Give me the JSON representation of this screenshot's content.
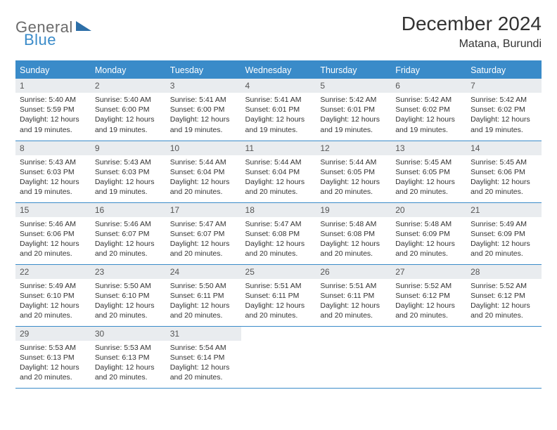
{
  "logo": {
    "part1": "General",
    "part2": "Blue"
  },
  "title": "December 2024",
  "location": "Matana, Burundi",
  "colors": {
    "header_bg": "#3a8bc9",
    "header_text": "#ffffff",
    "daynum_bg": "#e9ecef",
    "border": "#3a8bc9",
    "logo_gray": "#6b6b6b",
    "logo_blue": "#3a8bc9"
  },
  "weekdays": [
    "Sunday",
    "Monday",
    "Tuesday",
    "Wednesday",
    "Thursday",
    "Friday",
    "Saturday"
  ],
  "weeks": [
    [
      {
        "n": "1",
        "sr": "5:40 AM",
        "ss": "5:59 PM",
        "dl": "12 hours and 19 minutes."
      },
      {
        "n": "2",
        "sr": "5:40 AM",
        "ss": "6:00 PM",
        "dl": "12 hours and 19 minutes."
      },
      {
        "n": "3",
        "sr": "5:41 AM",
        "ss": "6:00 PM",
        "dl": "12 hours and 19 minutes."
      },
      {
        "n": "4",
        "sr": "5:41 AM",
        "ss": "6:01 PM",
        "dl": "12 hours and 19 minutes."
      },
      {
        "n": "5",
        "sr": "5:42 AM",
        "ss": "6:01 PM",
        "dl": "12 hours and 19 minutes."
      },
      {
        "n": "6",
        "sr": "5:42 AM",
        "ss": "6:02 PM",
        "dl": "12 hours and 19 minutes."
      },
      {
        "n": "7",
        "sr": "5:42 AM",
        "ss": "6:02 PM",
        "dl": "12 hours and 19 minutes."
      }
    ],
    [
      {
        "n": "8",
        "sr": "5:43 AM",
        "ss": "6:03 PM",
        "dl": "12 hours and 19 minutes."
      },
      {
        "n": "9",
        "sr": "5:43 AM",
        "ss": "6:03 PM",
        "dl": "12 hours and 19 minutes."
      },
      {
        "n": "10",
        "sr": "5:44 AM",
        "ss": "6:04 PM",
        "dl": "12 hours and 20 minutes."
      },
      {
        "n": "11",
        "sr": "5:44 AM",
        "ss": "6:04 PM",
        "dl": "12 hours and 20 minutes."
      },
      {
        "n": "12",
        "sr": "5:44 AM",
        "ss": "6:05 PM",
        "dl": "12 hours and 20 minutes."
      },
      {
        "n": "13",
        "sr": "5:45 AM",
        "ss": "6:05 PM",
        "dl": "12 hours and 20 minutes."
      },
      {
        "n": "14",
        "sr": "5:45 AM",
        "ss": "6:06 PM",
        "dl": "12 hours and 20 minutes."
      }
    ],
    [
      {
        "n": "15",
        "sr": "5:46 AM",
        "ss": "6:06 PM",
        "dl": "12 hours and 20 minutes."
      },
      {
        "n": "16",
        "sr": "5:46 AM",
        "ss": "6:07 PM",
        "dl": "12 hours and 20 minutes."
      },
      {
        "n": "17",
        "sr": "5:47 AM",
        "ss": "6:07 PM",
        "dl": "12 hours and 20 minutes."
      },
      {
        "n": "18",
        "sr": "5:47 AM",
        "ss": "6:08 PM",
        "dl": "12 hours and 20 minutes."
      },
      {
        "n": "19",
        "sr": "5:48 AM",
        "ss": "6:08 PM",
        "dl": "12 hours and 20 minutes."
      },
      {
        "n": "20",
        "sr": "5:48 AM",
        "ss": "6:09 PM",
        "dl": "12 hours and 20 minutes."
      },
      {
        "n": "21",
        "sr": "5:49 AM",
        "ss": "6:09 PM",
        "dl": "12 hours and 20 minutes."
      }
    ],
    [
      {
        "n": "22",
        "sr": "5:49 AM",
        "ss": "6:10 PM",
        "dl": "12 hours and 20 minutes."
      },
      {
        "n": "23",
        "sr": "5:50 AM",
        "ss": "6:10 PM",
        "dl": "12 hours and 20 minutes."
      },
      {
        "n": "24",
        "sr": "5:50 AM",
        "ss": "6:11 PM",
        "dl": "12 hours and 20 minutes."
      },
      {
        "n": "25",
        "sr": "5:51 AM",
        "ss": "6:11 PM",
        "dl": "12 hours and 20 minutes."
      },
      {
        "n": "26",
        "sr": "5:51 AM",
        "ss": "6:11 PM",
        "dl": "12 hours and 20 minutes."
      },
      {
        "n": "27",
        "sr": "5:52 AM",
        "ss": "6:12 PM",
        "dl": "12 hours and 20 minutes."
      },
      {
        "n": "28",
        "sr": "5:52 AM",
        "ss": "6:12 PM",
        "dl": "12 hours and 20 minutes."
      }
    ],
    [
      {
        "n": "29",
        "sr": "5:53 AM",
        "ss": "6:13 PM",
        "dl": "12 hours and 20 minutes."
      },
      {
        "n": "30",
        "sr": "5:53 AM",
        "ss": "6:13 PM",
        "dl": "12 hours and 20 minutes."
      },
      {
        "n": "31",
        "sr": "5:54 AM",
        "ss": "6:14 PM",
        "dl": "12 hours and 20 minutes."
      },
      null,
      null,
      null,
      null
    ]
  ],
  "labels": {
    "sunrise": "Sunrise:",
    "sunset": "Sunset:",
    "daylight": "Daylight:"
  }
}
